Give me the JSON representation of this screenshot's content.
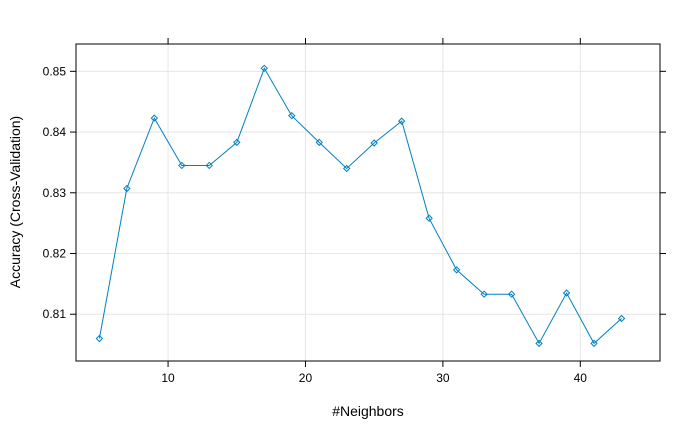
{
  "chart_data": {
    "type": "line",
    "title": "",
    "xlabel": "#Neighbors",
    "ylabel": "Accuracy (Cross-Validation)",
    "xlim": [
      3.3,
      45.8
    ],
    "ylim": [
      0.8023,
      0.8545
    ],
    "xticks": [
      10,
      20,
      30,
      40
    ],
    "yticks": [
      0.81,
      0.82,
      0.83,
      0.84,
      0.85
    ],
    "grid": true,
    "line_color": "#0080C0",
    "marker": "diamond",
    "series": [
      {
        "x": [
          5,
          7,
          9,
          11,
          13,
          15,
          17,
          19,
          21,
          23,
          25,
          27,
          29,
          31,
          33,
          35,
          37,
          39,
          41,
          43
        ],
        "y": [
          0.806,
          0.8307,
          0.8423,
          0.8345,
          0.8345,
          0.8383,
          0.8505,
          0.8427,
          0.8383,
          0.834,
          0.8382,
          0.8418,
          0.8258,
          0.8173,
          0.8133,
          0.8133,
          0.8052,
          0.8135,
          0.8052,
          0.8093
        ]
      }
    ]
  }
}
